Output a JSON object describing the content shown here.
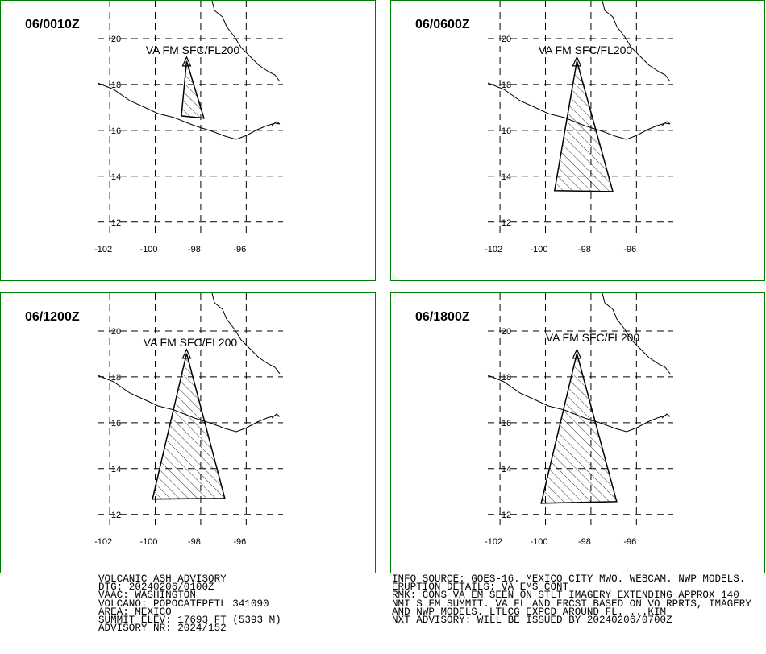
{
  "panels": [
    {
      "time": "06/0010Z",
      "layer": "VA FM SFC/FL200",
      "xlim": [
        -102.5,
        -94.7
      ],
      "ylim": [
        11.5,
        21.6
      ],
      "xticks": [
        -102,
        -100,
        -98,
        -96
      ],
      "yticks": [
        12,
        14,
        16,
        18,
        20
      ],
      "polygon": {
        "lon": [
          -98.62,
          -97.86,
          -98.85
        ],
        "lat": [
          19.02,
          16.53,
          16.63
        ]
      }
    },
    {
      "time": "06/0600Z",
      "layer": "VA FM SFC/FL200",
      "xlim": [
        -102.5,
        -94.7
      ],
      "ylim": [
        11.5,
        21.6
      ],
      "xticks": [
        -102,
        -100,
        -98,
        -96
      ],
      "yticks": [
        12,
        14,
        16,
        18,
        20
      ],
      "polygon": {
        "lon": [
          -98.62,
          -97.04,
          -99.6
        ],
        "lat": [
          19.02,
          13.33,
          13.37
        ]
      }
    },
    {
      "time": "06/1200Z",
      "layer": "VA FM SFC/FL200",
      "xlim": [
        -102.5,
        -94.7
      ],
      "ylim": [
        11.5,
        21.6
      ],
      "xticks": [
        -102,
        -100,
        -98,
        -96
      ],
      "yticks": [
        12,
        14,
        16,
        18,
        20
      ],
      "polygon": {
        "lon": [
          -98.62,
          -96.94,
          -100.12
        ],
        "lat": [
          19.02,
          12.7,
          12.67
        ]
      }
    },
    {
      "time": "06/1800Z",
      "layer": "VA FM SFC/FL200",
      "xlim": [
        -102.5,
        -94.7
      ],
      "ylim": [
        11.5,
        21.6
      ],
      "xticks": [
        -102,
        -100,
        -98,
        -96
      ],
      "yticks": [
        12,
        14,
        16,
        18,
        20
      ],
      "polygon": {
        "lon": [
          -98.62,
          -96.87,
          -100.19
        ],
        "lat": [
          19.02,
          12.56,
          12.49
        ]
      }
    }
  ],
  "advisory_left": [
    "VOLCANIC ASH ADVISORY",
    "DTG: 20240206/0100Z",
    "VAAC: WASHINGTON",
    "VOLCANO: POPOCATEPETL 341090",
    "AREA: MEXICO",
    "SUMMIT ELEV: 17693 FT (5393 M)",
    "ADVISORY NR: 2024/152"
  ],
  "advisory_right": [
    "INFO SOURCE: GOES-16. MEXICO CITY MWO. WEBCAM. NWP MODELS.",
    "ERUPTION DETAILS: VA EMS CONT",
    "RMK: CONS VA EM SEEN ON STLT IMAGERY EXTENDING APPROX 140",
    "NMI S FM SUMMIT. VA FL AND FRCST BASED ON VO RPRTS, IMAGERY",
    "AND NWP MODELS. LTLCG EXPCD AROUND FL. ...KIM",
    "NXT ADVISORY: WILL BE ISSUED BY 20240206/0700Z"
  ]
}
